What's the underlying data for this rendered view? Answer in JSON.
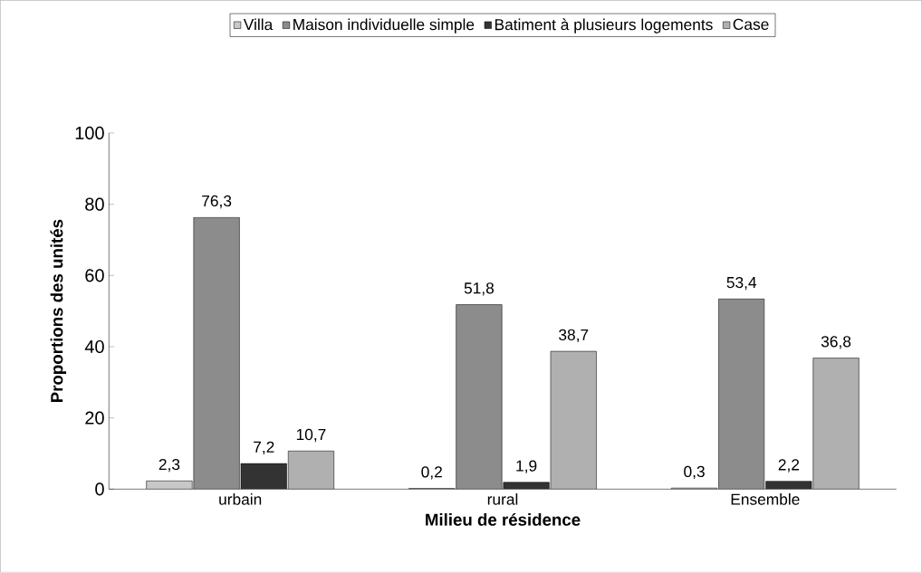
{
  "chart_data": {
    "type": "bar",
    "xlabel": "Milieu de résidence",
    "ylabel": "Proportions des unités",
    "categories": [
      "urbain",
      "rural",
      "Ensemble"
    ],
    "series": [
      {
        "name": "Villa",
        "color": "#c8c8c8",
        "values": [
          2.3,
          0.2,
          0.3
        ],
        "value_labels": [
          "2,3",
          "0,2",
          "0,3"
        ]
      },
      {
        "name": "Maison individuelle simple",
        "color": "#8c8c8c",
        "values": [
          76.3,
          51.8,
          53.4
        ],
        "value_labels": [
          "76,3",
          "51,8",
          "53,4"
        ]
      },
      {
        "name": "Batiment à plusieurs logements",
        "color": "#333333",
        "values": [
          7.2,
          1.9,
          2.2
        ],
        "value_labels": [
          "7,2",
          "1,9",
          "2,2"
        ]
      },
      {
        "name": "Case",
        "color": "#b0b0b0",
        "values": [
          10.7,
          38.7,
          36.8
        ],
        "value_labels": [
          "10,7",
          "38,7",
          "36,8"
        ]
      }
    ],
    "ylim": [
      0,
      100
    ],
    "yticks": [
      0,
      20,
      40,
      60,
      80,
      100
    ],
    "legend": "top",
    "grid": false
  }
}
